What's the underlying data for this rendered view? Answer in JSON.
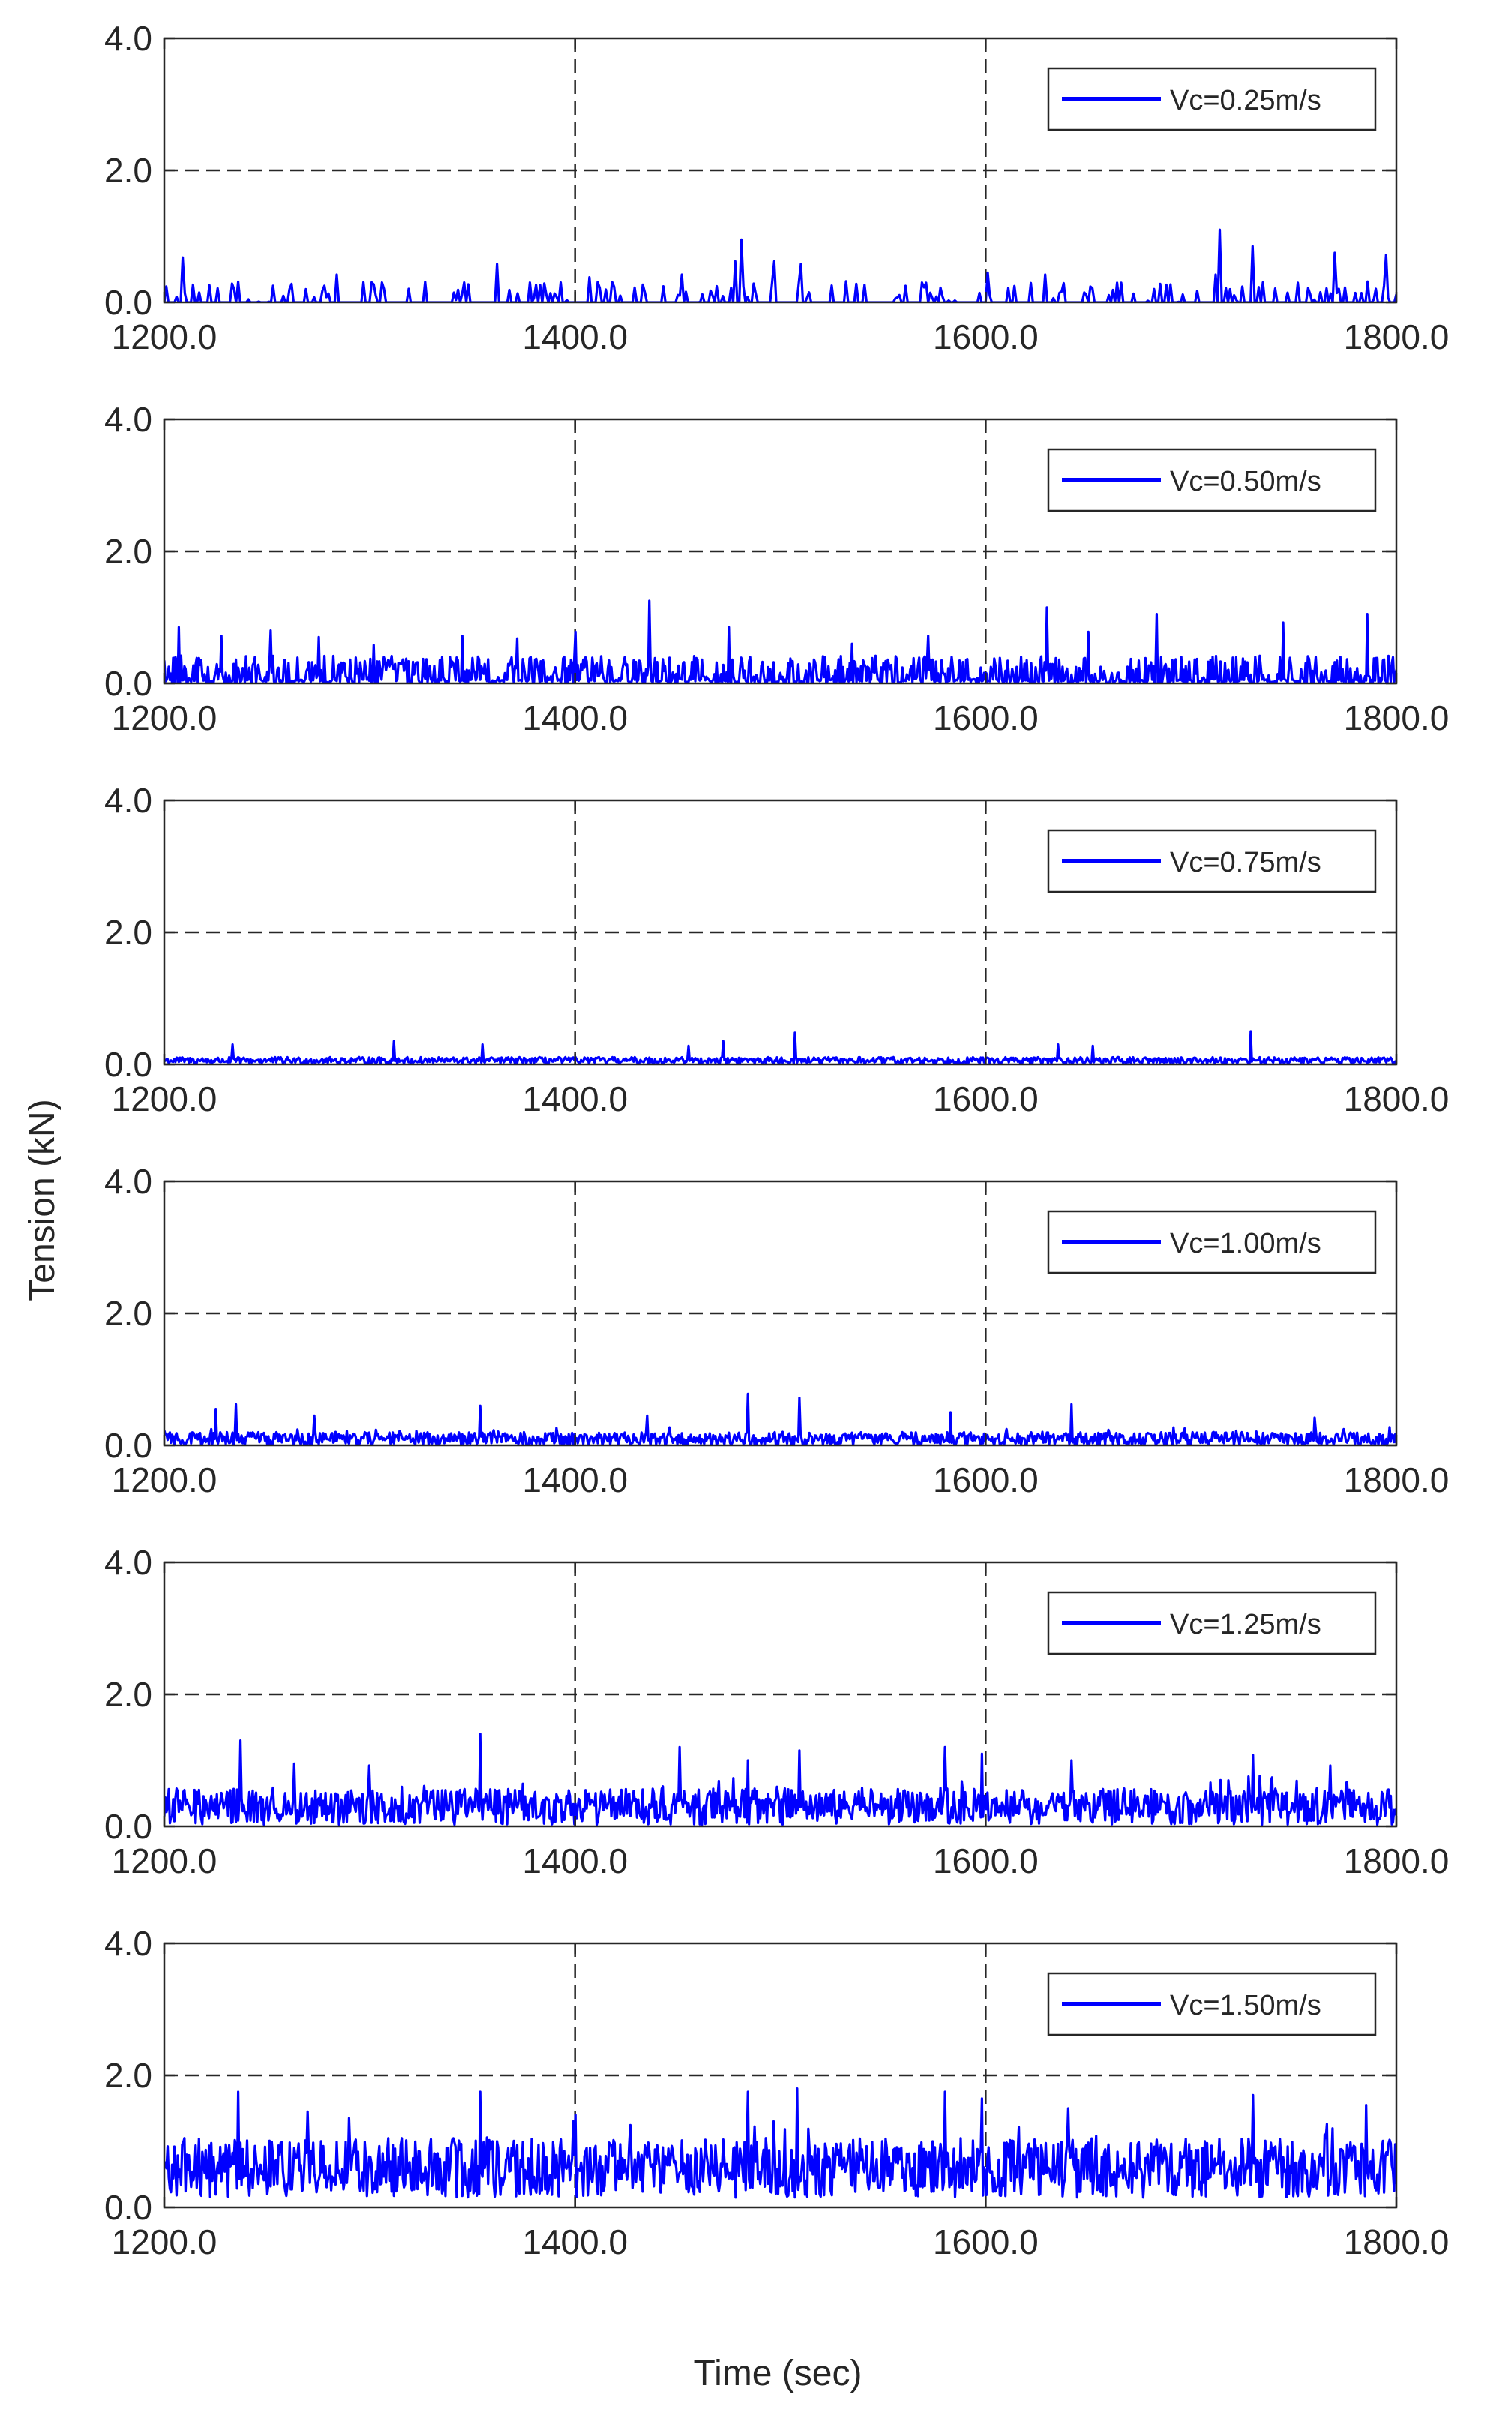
{
  "figure": {
    "ylabel": "Tension (kN)",
    "xlabel": "Time (sec)"
  },
  "colors": {
    "series": "#0000FF",
    "axis": "#262626",
    "grid": "#262626",
    "background": "#FFFFFF"
  },
  "chart_data": [
    {
      "type": "line",
      "legend": "Vc=0.25m/s",
      "legend_position": "top-right",
      "xlim": [
        1200,
        1800
      ],
      "ylim": [
        0,
        4
      ],
      "xticks": [
        "1200.0",
        "1400.0",
        "1600.0",
        "1800.0"
      ],
      "yticks": [
        "0.0",
        "2.0",
        "4.0"
      ],
      "grid": "dashed at x=1400, x=1600, y=2.0",
      "style": "sparse spikes",
      "base": 0.0,
      "noise": 0.05,
      "peaks": [
        [
          1209,
          0.68
        ],
        [
          1262,
          0.28
        ],
        [
          1284,
          0.42
        ],
        [
          1327,
          0.31
        ],
        [
          1362,
          0.58
        ],
        [
          1407,
          0.38
        ],
        [
          1452,
          0.42
        ],
        [
          1478,
          0.62
        ],
        [
          1481,
          0.95
        ],
        [
          1497,
          0.62
        ],
        [
          1510,
          0.58
        ],
        [
          1532,
          0.32
        ],
        [
          1569,
          0.3
        ],
        [
          1601,
          0.45
        ],
        [
          1629,
          0.42
        ],
        [
          1685,
          0.28
        ],
        [
          1712,
          0.42
        ],
        [
          1714,
          1.1
        ],
        [
          1730,
          0.85
        ],
        [
          1770,
          0.75
        ],
        [
          1795,
          0.72
        ]
      ]
    },
    {
      "type": "line",
      "legend": "Vc=0.50m/s",
      "legend_position": "top-right",
      "xlim": [
        1200,
        1800
      ],
      "ylim": [
        0,
        4
      ],
      "xticks": [
        "1200.0",
        "1400.0",
        "1600.0",
        "1800.0"
      ],
      "yticks": [
        "0.0",
        "2.0",
        "4.0"
      ],
      "grid": "dashed at x=1400, x=1600, y=2.0",
      "style": "dense spikes",
      "base": 0.02,
      "noise": 0.25,
      "peaks": [
        [
          1207,
          0.85
        ],
        [
          1228,
          0.72
        ],
        [
          1252,
          0.8
        ],
        [
          1275,
          0.7
        ],
        [
          1302,
          0.58
        ],
        [
          1345,
          0.72
        ],
        [
          1372,
          0.68
        ],
        [
          1400,
          0.78
        ],
        [
          1436,
          1.25
        ],
        [
          1475,
          0.85
        ],
        [
          1535,
          0.6
        ],
        [
          1572,
          0.72
        ],
        [
          1630,
          1.15
        ],
        [
          1650,
          0.78
        ],
        [
          1683,
          1.05
        ],
        [
          1745,
          0.92
        ],
        [
          1786,
          1.05
        ]
      ]
    },
    {
      "type": "line",
      "legend": "Vc=0.75m/s",
      "legend_position": "top-right",
      "xlim": [
        1200,
        1800
      ],
      "ylim": [
        0,
        4
      ],
      "xticks": [
        "1200.0",
        "1400.0",
        "1600.0",
        "1800.0"
      ],
      "yticks": [
        "0.0",
        "2.0",
        "4.0"
      ],
      "grid": "dashed at x=1400, x=1600, y=2.0",
      "style": "low noise",
      "base": 0.06,
      "noise": 0.1,
      "peaks": [
        [
          1233,
          0.3
        ],
        [
          1312,
          0.35
        ],
        [
          1355,
          0.3
        ],
        [
          1455,
          0.28
        ],
        [
          1472,
          0.35
        ],
        [
          1507,
          0.48
        ],
        [
          1635,
          0.3
        ],
        [
          1652,
          0.28
        ],
        [
          1729,
          0.5
        ]
      ]
    },
    {
      "type": "line",
      "legend": "Vc=1.00m/s",
      "legend_position": "top-right",
      "xlim": [
        1200,
        1800
      ],
      "ylim": [
        0,
        4
      ],
      "xticks": [
        "1200.0",
        "1400.0",
        "1600.0",
        "1800.0"
      ],
      "yticks": [
        "0.0",
        "2.0",
        "4.0"
      ],
      "grid": "dashed at x=1400, x=1600, y=2.0",
      "style": "noise band",
      "base": 0.1,
      "noise": 0.2,
      "peaks": [
        [
          1225,
          0.55
        ],
        [
          1235,
          0.62
        ],
        [
          1273,
          0.45
        ],
        [
          1354,
          0.6
        ],
        [
          1435,
          0.45
        ],
        [
          1484,
          0.78
        ],
        [
          1509,
          0.72
        ],
        [
          1583,
          0.5
        ],
        [
          1642,
          0.62
        ],
        [
          1760,
          0.42
        ]
      ]
    },
    {
      "type": "line",
      "legend": "Vc=1.25m/s",
      "legend_position": "top-right",
      "xlim": [
        1200,
        1800
      ],
      "ylim": [
        0,
        4
      ],
      "xticks": [
        "1200.0",
        "1400.0",
        "1600.0",
        "1800.0"
      ],
      "yticks": [
        "0.0",
        "2.0",
        "4.0"
      ],
      "grid": "dashed at x=1400, x=1600, y=2.0",
      "style": "noise band",
      "base": 0.3,
      "noise": 0.55,
      "peaks": [
        [
          1237,
          1.3
        ],
        [
          1263,
          0.95
        ],
        [
          1300,
          0.92
        ],
        [
          1354,
          1.4
        ],
        [
          1451,
          1.2
        ],
        [
          1484,
          1.0
        ],
        [
          1509,
          1.15
        ],
        [
          1580,
          1.2
        ],
        [
          1598,
          1.1
        ],
        [
          1642,
          1.0
        ],
        [
          1730,
          1.08
        ],
        [
          1768,
          0.92
        ]
      ]
    },
    {
      "type": "line",
      "legend": "Vc=1.50m/s",
      "legend_position": "top-right",
      "xlim": [
        1200,
        1800
      ],
      "ylim": [
        0,
        4
      ],
      "xticks": [
        "1200.0",
        "1400.0",
        "1600.0",
        "1800.0"
      ],
      "yticks": [
        "0.0",
        "2.0",
        "4.0"
      ],
      "grid": "dashed at x=1400, x=1600, y=2.0",
      "style": "noise band",
      "base": 0.6,
      "noise": 0.9,
      "peaks": [
        [
          1236,
          1.75
        ],
        [
          1270,
          1.45
        ],
        [
          1354,
          1.75
        ],
        [
          1400,
          1.4
        ],
        [
          1484,
          1.75
        ],
        [
          1508,
          1.8
        ],
        [
          1580,
          1.75
        ],
        [
          1598,
          1.65
        ],
        [
          1640,
          1.5
        ],
        [
          1730,
          1.7
        ],
        [
          1785,
          1.55
        ]
      ]
    }
  ]
}
